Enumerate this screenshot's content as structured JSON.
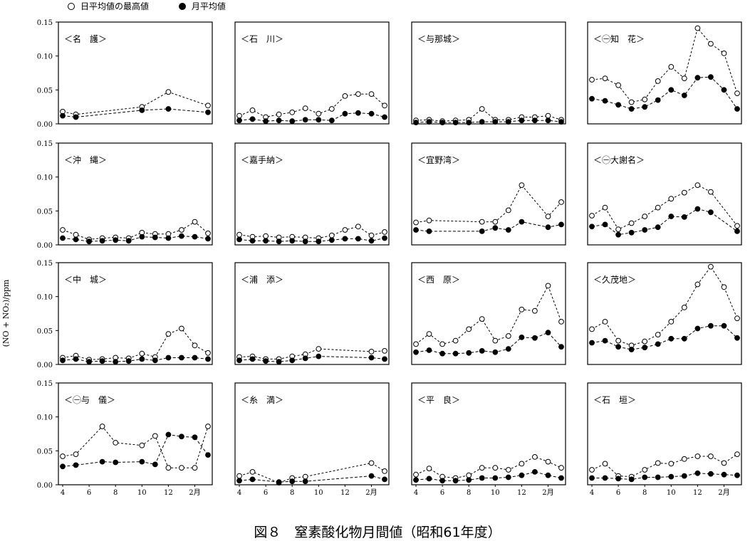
{
  "legend": {
    "max_label": "日平均値の最高値",
    "mean_label": "月平均値"
  },
  "caption": "図８　窒素酸化物月間値（昭和61年度）",
  "ylabel": "(NO + NO₂)/ppm",
  "colors": {
    "ink": "#000000",
    "paper": "#ffffff"
  },
  "axes": {
    "y_ticks": [
      "0.00",
      "0.05",
      "0.10",
      "0.15"
    ],
    "ylim": [
      0,
      0.15
    ],
    "x_ticks": [
      "4",
      "6",
      "8",
      "10",
      "12",
      "2月"
    ],
    "xlim": [
      4,
      15
    ]
  },
  "chart_data": [
    {
      "type": "line",
      "title": "＜名　護＞",
      "x": [
        4,
        5,
        10,
        12,
        15
      ],
      "series": [
        {
          "name": "日平均値の最高値",
          "marker": "open",
          "values": [
            0.018,
            0.014,
            0.025,
            0.047,
            0.027
          ]
        },
        {
          "name": "月平均値",
          "marker": "filled",
          "values": [
            0.012,
            0.01,
            0.02,
            0.022,
            0.017
          ]
        }
      ]
    },
    {
      "type": "line",
      "title": "＜石　川＞",
      "x": [
        4,
        5,
        6,
        7,
        8,
        9,
        10,
        11,
        12,
        13,
        14,
        15
      ],
      "series": [
        {
          "name": "日平均値の最高値",
          "marker": "open",
          "values": [
            0.012,
            0.02,
            0.01,
            0.014,
            0.017,
            0.023,
            0.015,
            0.022,
            0.041,
            0.044,
            0.044,
            0.027
          ]
        },
        {
          "name": "月平均値",
          "marker": "filled",
          "values": [
            0.005,
            0.007,
            0.004,
            0.005,
            0.004,
            0.006,
            0.006,
            0.005,
            0.015,
            0.016,
            0.015,
            0.01
          ]
        }
      ]
    },
    {
      "type": "line",
      "title": "＜与那城＞",
      "x": [
        4,
        5,
        6,
        7,
        8,
        9,
        10,
        11,
        12,
        13,
        14,
        15
      ],
      "series": [
        {
          "name": "日平均値の最高値",
          "marker": "open",
          "values": [
            0.005,
            0.006,
            0.004,
            0.005,
            0.006,
            0.022,
            0.006,
            0.006,
            0.01,
            0.01,
            0.012,
            0.006
          ]
        },
        {
          "name": "月平均値",
          "marker": "filled",
          "values": [
            0.002,
            0.003,
            0.002,
            0.002,
            0.002,
            0.003,
            0.003,
            0.003,
            0.005,
            0.005,
            0.005,
            0.003
          ]
        }
      ]
    },
    {
      "type": "line",
      "title": "＜㊀知　花＞",
      "x": [
        4,
        5,
        6,
        7,
        8,
        9,
        10,
        11,
        12,
        13,
        14,
        15
      ],
      "series": [
        {
          "name": "日平均値の最高値",
          "marker": "open",
          "values": [
            0.065,
            0.067,
            0.057,
            0.032,
            0.036,
            0.063,
            0.084,
            0.067,
            0.141,
            0.118,
            0.104,
            0.045
          ]
        },
        {
          "name": "月平均値",
          "marker": "filled",
          "values": [
            0.037,
            0.034,
            0.028,
            0.022,
            0.025,
            0.035,
            0.05,
            0.042,
            0.068,
            0.069,
            0.05,
            0.022
          ]
        }
      ]
    },
    {
      "type": "line",
      "title": "＜沖　縄＞",
      "x": [
        4,
        5,
        6,
        7,
        8,
        9,
        10,
        11,
        12,
        13,
        14,
        15
      ],
      "series": [
        {
          "name": "日平均値の最高値",
          "marker": "open",
          "values": [
            0.022,
            0.015,
            0.008,
            0.01,
            0.011,
            0.01,
            0.018,
            0.016,
            0.016,
            0.022,
            0.034,
            0.017
          ]
        },
        {
          "name": "月平均値",
          "marker": "filled",
          "values": [
            0.01,
            0.008,
            0.005,
            0.006,
            0.007,
            0.006,
            0.012,
            0.011,
            0.01,
            0.013,
            0.012,
            0.009
          ]
        }
      ]
    },
    {
      "type": "line",
      "title": "＜嘉手納＞",
      "x": [
        4,
        5,
        6,
        7,
        8,
        9,
        10,
        11,
        12,
        13,
        14,
        15
      ],
      "series": [
        {
          "name": "日平均値の最高値",
          "marker": "open",
          "values": [
            0.015,
            0.012,
            0.013,
            0.011,
            0.012,
            0.011,
            0.01,
            0.014,
            0.022,
            0.027,
            0.014,
            0.019
          ]
        },
        {
          "name": "月平均値",
          "marker": "filled",
          "values": [
            0.008,
            0.006,
            0.006,
            0.005,
            0.006,
            0.005,
            0.005,
            0.007,
            0.009,
            0.009,
            0.006,
            0.01
          ]
        }
      ]
    },
    {
      "type": "line",
      "title": "＜宜野湾＞",
      "x": [
        4,
        5,
        9,
        10,
        11,
        12,
        14,
        15
      ],
      "series": [
        {
          "name": "日平均値の最高値",
          "marker": "open",
          "values": [
            0.033,
            0.036,
            0.034,
            0.034,
            0.051,
            0.088,
            0.042,
            0.063
          ]
        },
        {
          "name": "月平均値",
          "marker": "filled",
          "values": [
            0.022,
            0.02,
            0.02,
            0.025,
            0.022,
            0.034,
            0.026,
            0.03
          ]
        }
      ]
    },
    {
      "type": "line",
      "title": "＜㊀大謝名＞",
      "x": [
        4,
        5,
        6,
        7,
        8,
        9,
        10,
        11,
        12,
        13,
        15
      ],
      "series": [
        {
          "name": "日平均値の最高値",
          "marker": "open",
          "values": [
            0.043,
            0.055,
            0.023,
            0.032,
            0.042,
            0.055,
            0.068,
            0.077,
            0.088,
            0.078,
            0.028
          ]
        },
        {
          "name": "月平均値",
          "marker": "filled",
          "values": [
            0.027,
            0.03,
            0.015,
            0.018,
            0.022,
            0.026,
            0.042,
            0.041,
            0.053,
            0.048,
            0.02
          ]
        }
      ]
    },
    {
      "type": "line",
      "title": "＜中　城＞",
      "x": [
        4,
        5,
        6,
        7,
        8,
        9,
        10,
        11,
        12,
        13,
        14,
        15
      ],
      "series": [
        {
          "name": "日平均値の最高値",
          "marker": "open",
          "values": [
            0.01,
            0.013,
            0.007,
            0.008,
            0.01,
            0.009,
            0.016,
            0.011,
            0.045,
            0.053,
            0.028,
            0.017
          ]
        },
        {
          "name": "月平均値",
          "marker": "filled",
          "values": [
            0.006,
            0.008,
            0.004,
            0.005,
            0.004,
            0.005,
            0.008,
            0.006,
            0.01,
            0.01,
            0.01,
            0.008
          ]
        }
      ]
    },
    {
      "type": "line",
      "title": "＜浦　添＞",
      "x": [
        4,
        5,
        6,
        7,
        8,
        9,
        10,
        14,
        15
      ],
      "series": [
        {
          "name": "日平均値の最高値",
          "marker": "open",
          "values": [
            0.011,
            0.012,
            0.008,
            0.008,
            0.012,
            0.015,
            0.023,
            0.019,
            0.02
          ]
        },
        {
          "name": "月平均値",
          "marker": "filled",
          "values": [
            0.006,
            0.008,
            0.005,
            0.004,
            0.006,
            0.009,
            0.012,
            0.01,
            0.008
          ]
        }
      ]
    },
    {
      "type": "line",
      "title": "＜西　原＞",
      "x": [
        4,
        5,
        6,
        7,
        8,
        9,
        10,
        11,
        12,
        13,
        14,
        15
      ],
      "series": [
        {
          "name": "日平均値の最高値",
          "marker": "open",
          "values": [
            0.03,
            0.045,
            0.03,
            0.035,
            0.052,
            0.067,
            0.035,
            0.042,
            0.081,
            0.079,
            0.116,
            0.063
          ]
        },
        {
          "name": "月平均値",
          "marker": "filled",
          "values": [
            0.018,
            0.021,
            0.016,
            0.016,
            0.017,
            0.02,
            0.018,
            0.023,
            0.04,
            0.039,
            0.047,
            0.026
          ]
        }
      ]
    },
    {
      "type": "line",
      "title": "＜久茂地＞",
      "x": [
        4,
        5,
        6,
        7,
        8,
        9,
        10,
        11,
        12,
        13,
        14,
        15
      ],
      "series": [
        {
          "name": "日平均値の最高値",
          "marker": "open",
          "values": [
            0.052,
            0.063,
            0.035,
            0.028,
            0.034,
            0.044,
            0.063,
            0.084,
            0.118,
            0.144,
            0.114,
            0.068
          ]
        },
        {
          "name": "月平均値",
          "marker": "filled",
          "values": [
            0.032,
            0.035,
            0.026,
            0.022,
            0.025,
            0.03,
            0.038,
            0.038,
            0.053,
            0.057,
            0.057,
            0.039
          ]
        }
      ]
    },
    {
      "type": "line",
      "title": "＜㊀与　儀＞",
      "x": [
        4,
        5,
        7,
        8,
        10,
        11,
        12,
        13,
        14,
        15
      ],
      "series": [
        {
          "name": "日平均値の最高値",
          "marker": "open",
          "values": [
            0.042,
            0.045,
            0.086,
            0.062,
            0.058,
            0.072,
            0.025,
            0.025,
            0.025,
            0.086
          ]
        },
        {
          "name": "月平均値",
          "marker": "filled",
          "values": [
            0.027,
            0.029,
            0.034,
            0.033,
            0.034,
            0.03,
            0.074,
            0.071,
            0.07,
            0.044
          ]
        }
      ]
    },
    {
      "type": "line",
      "title": "＜糸　満＞",
      "x": [
        4,
        5,
        7,
        8,
        9,
        14,
        15
      ],
      "series": [
        {
          "name": "日平均値の最高値",
          "marker": "open",
          "values": [
            0.013,
            0.019,
            0.003,
            0.01,
            0.012,
            0.032,
            0.02
          ]
        },
        {
          "name": "月平均値",
          "marker": "filled",
          "values": [
            0.006,
            0.008,
            0.004,
            0.005,
            0.005,
            0.013,
            0.008
          ]
        }
      ]
    },
    {
      "type": "line",
      "title": "＜平　良＞",
      "x": [
        4,
        5,
        6,
        7,
        8,
        9,
        10,
        11,
        12,
        13,
        14,
        15
      ],
      "series": [
        {
          "name": "日平均値の最高値",
          "marker": "open",
          "values": [
            0.015,
            0.024,
            0.012,
            0.01,
            0.014,
            0.025,
            0.025,
            0.022,
            0.031,
            0.041,
            0.034,
            0.025
          ]
        },
        {
          "name": "月平均値",
          "marker": "filled",
          "values": [
            0.007,
            0.009,
            0.006,
            0.006,
            0.007,
            0.01,
            0.01,
            0.011,
            0.014,
            0.019,
            0.014,
            0.01
          ]
        }
      ]
    },
    {
      "type": "line",
      "title": "＜石　垣＞",
      "x": [
        4,
        5,
        6,
        7,
        8,
        9,
        10,
        11,
        12,
        13,
        14,
        15
      ],
      "series": [
        {
          "name": "日平均値の最高値",
          "marker": "open",
          "values": [
            0.022,
            0.031,
            0.013,
            0.012,
            0.022,
            0.032,
            0.031,
            0.038,
            0.042,
            0.042,
            0.032,
            0.045
          ]
        },
        {
          "name": "月平均値",
          "marker": "filled",
          "values": [
            0.01,
            0.01,
            0.009,
            0.008,
            0.011,
            0.011,
            0.012,
            0.013,
            0.017,
            0.016,
            0.015,
            0.014
          ]
        }
      ]
    }
  ]
}
